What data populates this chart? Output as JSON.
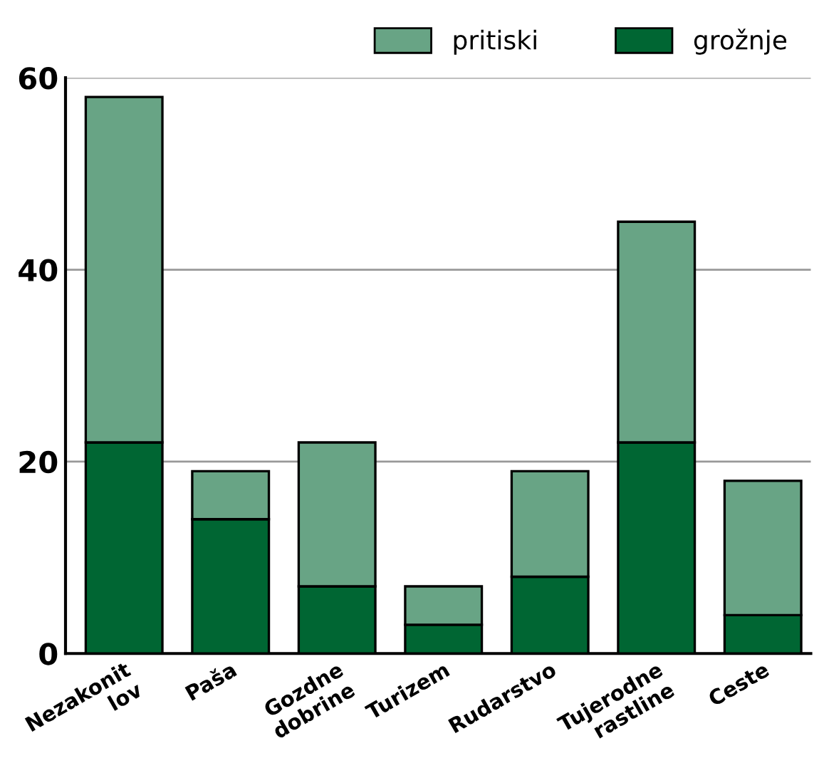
{
  "chart_data": {
    "type": "bar",
    "stacked": true,
    "categories": [
      "Nezakonit\nlov",
      "Paša",
      "Gozdne\ndobrine",
      "Turizem",
      "Rudarstvo",
      "Tujerodne\nrastline",
      "Ceste"
    ],
    "series": [
      {
        "name": "grožnje",
        "color": "#006633",
        "values": [
          22,
          14,
          7,
          3,
          8,
          22,
          4
        ]
      },
      {
        "name": "pritiski",
        "color": "#68a485",
        "values": [
          36,
          5,
          15,
          4,
          11,
          23,
          14
        ]
      }
    ],
    "ylim": [
      0,
      60
    ],
    "yticks": [
      0,
      20,
      40,
      60
    ],
    "grid": "y",
    "legend": "top right"
  }
}
